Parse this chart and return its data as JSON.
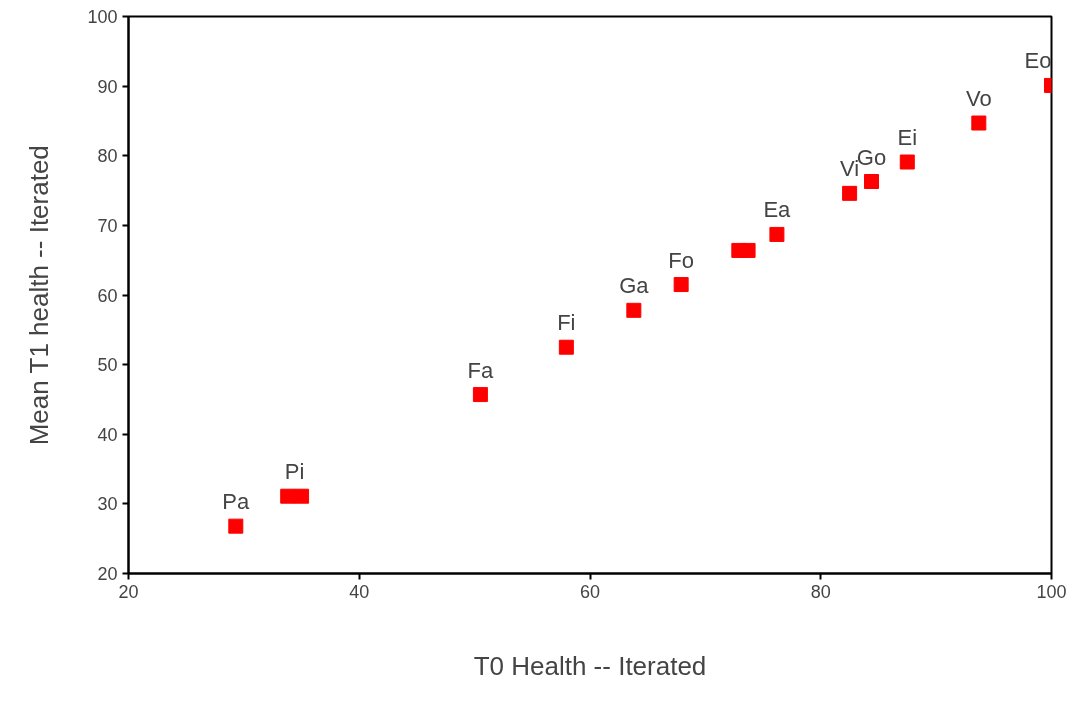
{
  "chart_data": {
    "type": "scatter",
    "xlabel": "T0 Health -- Iterated",
    "ylabel": "Mean T1 health -- Iterated",
    "x": [
      29.3,
      33.8,
      35.0,
      50.5,
      57.95,
      63.8,
      67.9,
      72.9,
      73.7,
      76.2,
      82.5,
      84.4,
      87.5,
      93.7,
      100
    ],
    "series": [
      {
        "color": "#ff0000",
        "values": [
          26.8,
          31.1,
          31.1,
          45.7,
          52.5,
          57.8,
          61.5,
          66.4,
          66.4,
          68.7,
          74.6,
          76.3,
          79.1,
          84.7,
          90.1
        ]
      }
    ],
    "xlim": [
      20,
      100
    ],
    "ylim": [
      20,
      100
    ],
    "xticks": [
      20,
      40,
      60,
      80,
      100
    ],
    "yticks": [
      20,
      30,
      40,
      50,
      60,
      70,
      80,
      90,
      100
    ],
    "marker": "square",
    "grid": false,
    "annotations": [
      {
        "text": "Pa",
        "x": 29.3,
        "y": 26.8
      },
      {
        "text": "Pi",
        "x": 34.4,
        "y": 31.1
      },
      {
        "text": "Fa",
        "x": 50.5,
        "y": 45.7
      },
      {
        "text": "Fi",
        "x": 57.95,
        "y": 52.5
      },
      {
        "text": "Ga",
        "x": 63.8,
        "y": 57.8
      },
      {
        "text": "Fo",
        "x": 67.9,
        "y": 61.5
      },
      {
        "text": "Ea",
        "x": 76.2,
        "y": 68.7
      },
      {
        "text": "Vi",
        "x": 82.5,
        "y": 74.6
      },
      {
        "text": "Go",
        "x": 84.4,
        "y": 76.3
      },
      {
        "text": "Ei",
        "x": 87.5,
        "y": 79.1
      },
      {
        "text": "Vo",
        "x": 93.7,
        "y": 84.7
      },
      {
        "text": "Eo",
        "x": 100,
        "y": 90.1
      }
    ]
  }
}
